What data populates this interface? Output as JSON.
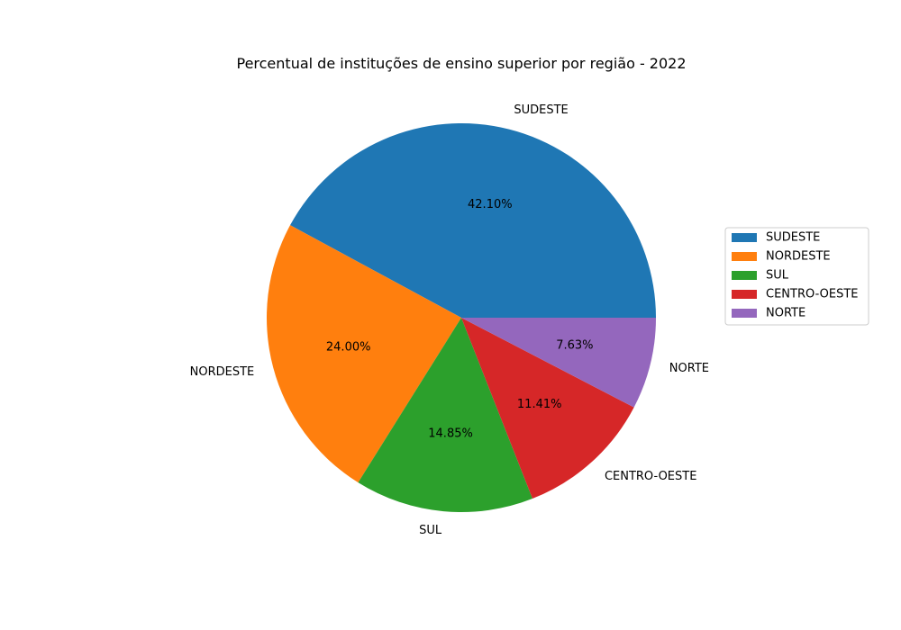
{
  "chart_data": {
    "type": "pie",
    "title": "Percentual de instituções de ensino superior por região - 2022",
    "categories": [
      "SUDESTE",
      "NORDESTE",
      "SUL",
      "CENTRO-OESTE",
      "NORTE"
    ],
    "values": [
      42.1,
      24.0,
      14.85,
      11.41,
      7.63
    ],
    "value_labels": [
      "42.10%",
      "24.00%",
      "14.85%",
      "11.41%",
      "7.63%"
    ],
    "colors": [
      "#1f77b4",
      "#ff7f0e",
      "#2ca02c",
      "#d62728",
      "#9467bd"
    ],
    "start_angle_deg": 0,
    "direction": "counterclockwise",
    "legend": {
      "placement": "center-right",
      "entries": [
        "SUDESTE",
        "NORDESTE",
        "SUL",
        "CENTRO-OESTE",
        "NORTE"
      ]
    }
  }
}
